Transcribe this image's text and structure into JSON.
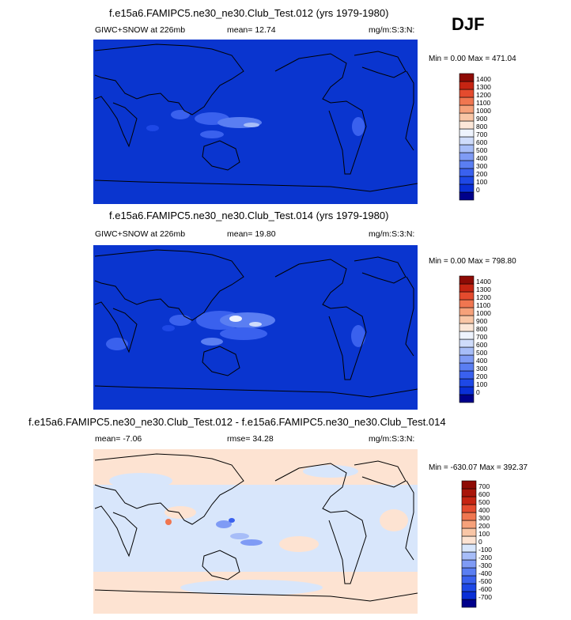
{
  "season": "DJF",
  "chart_data": [
    {
      "type": "heatmap",
      "title": "f.e15a6.FAMIPC5.ne30_ne30.Club_Test.012 (yrs 1979-1980)",
      "variable": "GIWC+SNOW at 226mb",
      "mean_text": "mean=  12.74",
      "mean": 12.74,
      "units": "mg/m:S:3:N:",
      "minmax_text": "Min =   0.00 Max = 471.04",
      "min": 0.0,
      "max": 471.04,
      "legend_levels": [
        "0",
        "100",
        "200",
        "300",
        "400",
        "500",
        "600",
        "700",
        "800",
        "900",
        "1000",
        "1100",
        "1200",
        "1300",
        "1400"
      ],
      "legend_colors": [
        "#00008b",
        "#0a2fd6",
        "#1e48e6",
        "#3a61ee",
        "#5a7ef2",
        "#7f9bf5",
        "#a7bdf8",
        "#cfdcfb",
        "#eef3fd",
        "#fce7d8",
        "#f9c6a6",
        "#f6a17a",
        "#f07650",
        "#e44b2e",
        "#c52412",
        "#8e0b05"
      ],
      "field_color": "#0a35cf"
    },
    {
      "type": "heatmap",
      "title": "f.e15a6.FAMIPC5.ne30_ne30.Club_Test.014 (yrs 1979-1980)",
      "variable": "GIWC+SNOW at 226mb",
      "mean_text": "mean=  19.80",
      "mean": 19.8,
      "units": "mg/m:S:3:N:",
      "minmax_text": "Min =   0.00 Max = 798.80",
      "min": 0.0,
      "max": 798.8,
      "legend_levels": [
        "0",
        "100",
        "200",
        "300",
        "400",
        "500",
        "600",
        "700",
        "800",
        "900",
        "1000",
        "1100",
        "1200",
        "1300",
        "1400"
      ],
      "legend_colors": [
        "#00008b",
        "#0a2fd6",
        "#1e48e6",
        "#3a61ee",
        "#5a7ef2",
        "#7f9bf5",
        "#a7bdf8",
        "#cfdcfb",
        "#eef3fd",
        "#fce7d8",
        "#f9c6a6",
        "#f6a17a",
        "#f07650",
        "#e44b2e",
        "#c52412",
        "#8e0b05"
      ],
      "field_color": "#0a35cf"
    },
    {
      "type": "heatmap",
      "title": "f.e15a6.FAMIPC5.ne30_ne30.Club_Test.012 - f.e15a6.FAMIPC5.ne30_ne30.Club_Test.014",
      "mean_text": "mean=  -7.06",
      "mean": -7.06,
      "rmse_text": "rmse=  34.28",
      "rmse": 34.28,
      "units": "mg/m:S:3:N:",
      "minmax_text": "Min = -630.07 Max = 392.37",
      "min": -630.07,
      "max": 392.37,
      "legend_levels": [
        "-700",
        "-600",
        "-500",
        "-400",
        "-300",
        "-200",
        "-100",
        "0",
        "100",
        "200",
        "300",
        "400",
        "500",
        "600",
        "700"
      ],
      "legend_colors": [
        "#00008b",
        "#0a2fd6",
        "#1e48e6",
        "#3a61ee",
        "#5a7ef2",
        "#7f9bf5",
        "#a7bdf8",
        "#d8e6fb",
        "#fde3d2",
        "#f9c6a6",
        "#f6a17a",
        "#f07650",
        "#e44b2e",
        "#c52412",
        "#a9150a",
        "#8e0b05"
      ],
      "field_color": "#fde3d2"
    }
  ]
}
